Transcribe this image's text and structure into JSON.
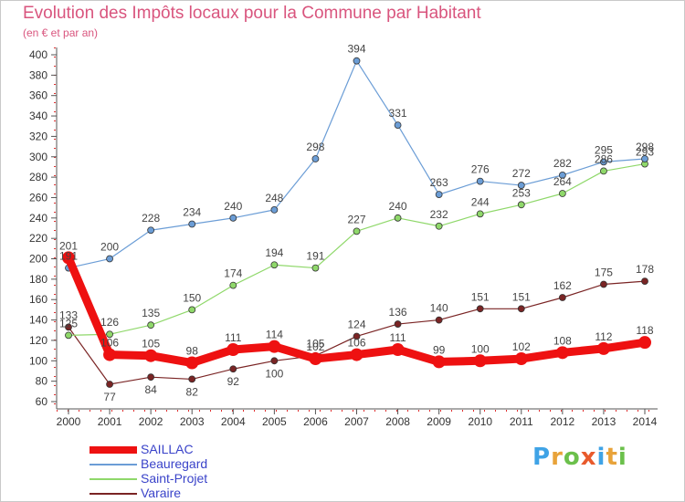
{
  "header": {
    "title": "Evolution des Impôts locaux pour la Commune par Habitant",
    "subtitle": "(en € et par an)"
  },
  "logo": {
    "text": "Proxiti",
    "colors": [
      "#3fa3e6",
      "#e8a33a",
      "#6bc04b",
      "#e85a2c",
      "#3fa3e6",
      "#e8a33a",
      "#6bc04b"
    ]
  },
  "chart_data": {
    "type": "line",
    "title": "Evolution des Impôts locaux pour la Commune par Habitant",
    "subtitle": "(en € et par an)",
    "xlabel": "",
    "ylabel": "",
    "categories": [
      "2000",
      "2001",
      "2002",
      "2003",
      "2004",
      "2005",
      "2006",
      "2007",
      "2008",
      "2009",
      "2010",
      "2011",
      "2012",
      "2013",
      "2014"
    ],
    "ylim": [
      60,
      400
    ],
    "yticks": [
      60,
      80,
      100,
      120,
      140,
      160,
      180,
      200,
      220,
      240,
      260,
      280,
      300,
      320,
      340,
      360,
      380,
      400
    ],
    "grid": false,
    "legend_position": "bottom-left",
    "series": [
      {
        "name": "SAILLAC",
        "color": "#ee1111",
        "values": [
          201,
          106,
          105,
          98,
          111,
          114,
          102,
          106,
          111,
          99,
          100,
          102,
          108,
          112,
          118
        ]
      },
      {
        "name": "Beauregard",
        "color": "#6b9dd6",
        "values": [
          191,
          200,
          228,
          234,
          240,
          248,
          298,
          394,
          331,
          263,
          276,
          272,
          282,
          295,
          298
        ]
      },
      {
        "name": "Saint-Projet",
        "color": "#8fd86a",
        "values": [
          125,
          126,
          135,
          150,
          174,
          194,
          191,
          227,
          240,
          232,
          244,
          253,
          264,
          286,
          293
        ]
      },
      {
        "name": "Varaire",
        "color": "#7a2424",
        "values": [
          133,
          77,
          84,
          82,
          92,
          100,
          105,
          124,
          136,
          140,
          151,
          151,
          162,
          175,
          178
        ]
      }
    ]
  }
}
